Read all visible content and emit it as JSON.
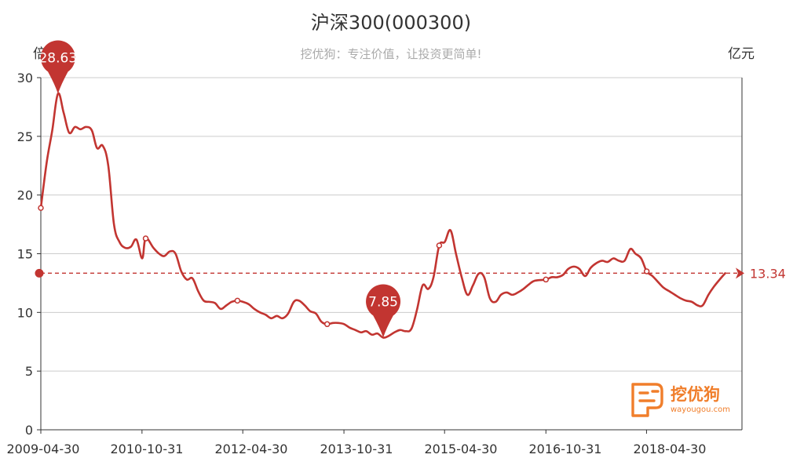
{
  "chart_data": {
    "type": "line",
    "title": "沪深300(000300)",
    "subtitle": "挖优狗：专注价值，让投资更简单!",
    "y_axis_name": "倍",
    "right_axis_name": "亿元",
    "ylim": [
      0,
      30
    ],
    "y_ticks": [
      "0",
      "5",
      "10",
      "15",
      "20",
      "25",
      "30"
    ],
    "x_tick_labels": [
      "2009-04-30",
      "2010-10-31",
      "2012-04-30",
      "2013-10-31",
      "2015-04-30",
      "2016-10-31",
      "2018-04-30"
    ],
    "x_ticks": [
      "2009-04-30",
      "2010-10-31",
      "2012-04-30",
      "2013-10-31",
      "2015-04-30",
      "2016-10-31",
      "2018-04-30",
      "2019-10-31"
    ],
    "xlim": [
      "2009-04-30",
      "2019-09-30"
    ],
    "grid": true,
    "series": [
      {
        "color": "#c23531",
        "points": [
          [
            "2009-04-30",
            18.9
          ],
          [
            "2009-06-01",
            22.8
          ],
          [
            "2009-07-01",
            25.5
          ],
          [
            "2009-08-01",
            28.63
          ],
          [
            "2009-09-01",
            27.0
          ],
          [
            "2009-10-01",
            25.3
          ],
          [
            "2009-11-01",
            25.8
          ],
          [
            "2009-12-01",
            25.6
          ],
          [
            "2010-01-01",
            25.8
          ],
          [
            "2010-02-01",
            25.5
          ],
          [
            "2010-03-01",
            24.0
          ],
          [
            "2010-04-01",
            24.2
          ],
          [
            "2010-05-01",
            22.5
          ],
          [
            "2010-06-01",
            17.5
          ],
          [
            "2010-07-01",
            16.0
          ],
          [
            "2010-08-01",
            15.5
          ],
          [
            "2010-09-01",
            15.6
          ],
          [
            "2010-10-01",
            16.2
          ],
          [
            "2010-11-01",
            14.6
          ],
          [
            "2010-11-20",
            16.3
          ],
          [
            "2011-01-01",
            15.5
          ],
          [
            "2011-02-01",
            15.0
          ],
          [
            "2011-03-01",
            14.8
          ],
          [
            "2011-04-01",
            15.2
          ],
          [
            "2011-05-01",
            15.0
          ],
          [
            "2011-06-01",
            13.5
          ],
          [
            "2011-07-01",
            12.8
          ],
          [
            "2011-08-01",
            12.9
          ],
          [
            "2011-09-01",
            11.8
          ],
          [
            "2011-10-01",
            11.0
          ],
          [
            "2011-11-01",
            10.9
          ],
          [
            "2011-12-01",
            10.8
          ],
          [
            "2012-01-01",
            10.3
          ],
          [
            "2012-02-01",
            10.6
          ],
          [
            "2012-03-01",
            10.9
          ],
          [
            "2012-04-01",
            11.0
          ],
          [
            "2012-05-01",
            10.9
          ],
          [
            "2012-06-01",
            10.7
          ],
          [
            "2012-07-01",
            10.3
          ],
          [
            "2012-08-01",
            10.0
          ],
          [
            "2012-09-01",
            9.8
          ],
          [
            "2012-10-01",
            9.5
          ],
          [
            "2012-11-01",
            9.7
          ],
          [
            "2012-12-01",
            9.5
          ],
          [
            "2013-01-01",
            9.9
          ],
          [
            "2013-02-01",
            10.9
          ],
          [
            "2013-03-01",
            11.0
          ],
          [
            "2013-04-01",
            10.6
          ],
          [
            "2013-05-01",
            10.1
          ],
          [
            "2013-06-01",
            9.9
          ],
          [
            "2013-07-01",
            9.2
          ],
          [
            "2013-08-01",
            9.0
          ],
          [
            "2013-09-01",
            9.1
          ],
          [
            "2013-10-01",
            9.1
          ],
          [
            "2013-11-01",
            9.0
          ],
          [
            "2013-12-01",
            8.7
          ],
          [
            "2014-01-01",
            8.5
          ],
          [
            "2014-02-01",
            8.3
          ],
          [
            "2014-03-01",
            8.4
          ],
          [
            "2014-04-01",
            8.1
          ],
          [
            "2014-05-01",
            8.2
          ],
          [
            "2014-06-01",
            7.85
          ],
          [
            "2014-07-01",
            8.0
          ],
          [
            "2014-08-01",
            8.3
          ],
          [
            "2014-09-01",
            8.5
          ],
          [
            "2014-10-01",
            8.4
          ],
          [
            "2014-11-01",
            8.6
          ],
          [
            "2014-12-01",
            10.2
          ],
          [
            "2015-01-01",
            12.3
          ],
          [
            "2015-02-01",
            12.0
          ],
          [
            "2015-03-01",
            13.0
          ],
          [
            "2015-04-01",
            15.7
          ],
          [
            "2015-05-01",
            16.0
          ],
          [
            "2015-06-01",
            17.0
          ],
          [
            "2015-07-01",
            15.0
          ],
          [
            "2015-08-01",
            13.0
          ],
          [
            "2015-09-01",
            11.5
          ],
          [
            "2015-10-01",
            12.3
          ],
          [
            "2015-11-01",
            13.3
          ],
          [
            "2015-12-01",
            13.0
          ],
          [
            "2016-01-01",
            11.2
          ],
          [
            "2016-02-01",
            10.9
          ],
          [
            "2016-03-01",
            11.5
          ],
          [
            "2016-04-01",
            11.7
          ],
          [
            "2016-05-01",
            11.5
          ],
          [
            "2016-06-01",
            11.7
          ],
          [
            "2016-07-01",
            12.0
          ],
          [
            "2016-08-01",
            12.4
          ],
          [
            "2016-09-01",
            12.7
          ],
          [
            "2016-10-31",
            12.8
          ],
          [
            "2016-12-01",
            13.0
          ],
          [
            "2017-01-01",
            13.0
          ],
          [
            "2017-02-01",
            13.2
          ],
          [
            "2017-03-01",
            13.7
          ],
          [
            "2017-04-01",
            13.9
          ],
          [
            "2017-05-01",
            13.7
          ],
          [
            "2017-06-01",
            13.1
          ],
          [
            "2017-07-01",
            13.8
          ],
          [
            "2017-08-01",
            14.2
          ],
          [
            "2017-09-01",
            14.4
          ],
          [
            "2017-10-01",
            14.3
          ],
          [
            "2017-11-01",
            14.6
          ],
          [
            "2017-12-01",
            14.4
          ],
          [
            "2018-01-01",
            14.4
          ],
          [
            "2018-02-01",
            15.4
          ],
          [
            "2018-03-01",
            15.0
          ],
          [
            "2018-04-01",
            14.6
          ],
          [
            "2018-05-01",
            13.5
          ],
          [
            "2018-06-01",
            13.1
          ],
          [
            "2018-07-01",
            12.6
          ],
          [
            "2018-08-01",
            12.1
          ],
          [
            "2018-09-01",
            11.8
          ],
          [
            "2018-10-01",
            11.5
          ],
          [
            "2018-11-01",
            11.2
          ],
          [
            "2018-12-01",
            11.0
          ],
          [
            "2019-01-01",
            10.9
          ],
          [
            "2019-02-01",
            10.6
          ],
          [
            "2019-03-01",
            10.6
          ],
          [
            "2019-04-01",
            11.5
          ],
          [
            "2019-05-01",
            12.2
          ],
          [
            "2019-06-01",
            12.8
          ],
          [
            "2019-07-01",
            13.34
          ]
        ],
        "symbol_points": [
          [
            "2009-04-30",
            18.9
          ],
          [
            "2010-11-20",
            16.3
          ],
          [
            "2012-04-01",
            11.0
          ],
          [
            "2013-08-01",
            9.0
          ],
          [
            "2015-04-01",
            15.7
          ],
          [
            "2016-10-31",
            12.8
          ],
          [
            "2018-05-01",
            13.5
          ]
        ]
      }
    ],
    "annotations": {
      "max": {
        "x": "2009-08-01",
        "y": 28.63,
        "label": "28.63"
      },
      "min": {
        "x": "2014-06-01",
        "y": 7.85,
        "label": "7.85"
      },
      "reference_line": {
        "y": 13.34,
        "label": "13.34",
        "style": "dashed"
      }
    },
    "colors": {
      "line": "#c23531",
      "grid": "#cccccc",
      "axis": "#333333",
      "logo": "#f07e2b"
    }
  },
  "watermark": {
    "cn": "挖优狗",
    "en": "wayougou.com"
  }
}
